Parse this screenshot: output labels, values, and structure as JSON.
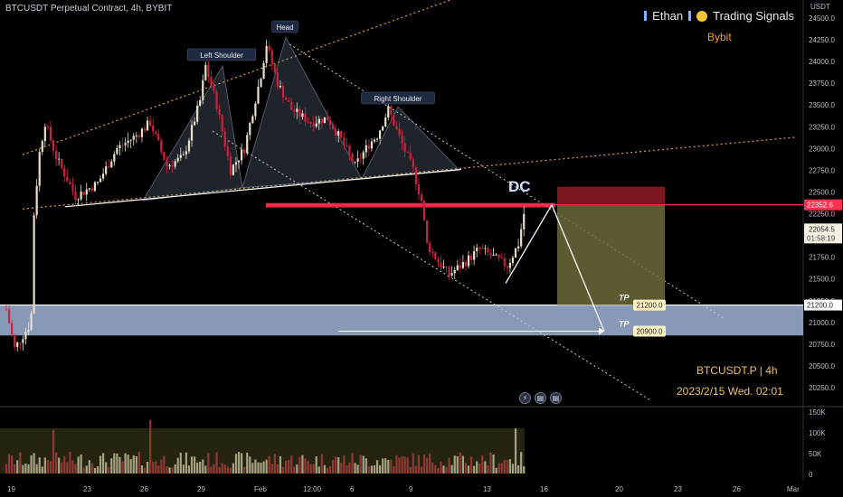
{
  "header": {
    "title": "BTCUSDT Perpetual Contract, 4h, BYBIT"
  },
  "branding": {
    "author": "Ethan",
    "signals": "Trading Signals",
    "exchange": "Bybit"
  },
  "footer": {
    "symbol": "BTCUSDT.P | 4h",
    "datetime": "2023/2/15 Wed. 02:01"
  },
  "axis": {
    "unit": "USDT"
  },
  "icons": [
    "lightning-icon",
    "us-flag-icon",
    "us-flag-icon"
  ],
  "colors": {
    "up": "#e8e0c8",
    "down": "#d02040",
    "tp_zone": "#9fb4d6",
    "stop_zone": "#8b1a22",
    "target_zone": "#6b6a3a",
    "resistance": "#ff3050",
    "channel": "#e0a040"
  },
  "chart_data": {
    "type": "candlestick",
    "title": "BTCUSDT Perpetual Contract, 4h, BYBIT",
    "ylim": [
      20000,
      24500
    ],
    "y_ticks": [
      20250,
      20500,
      20750,
      21000,
      21250,
      21500,
      21750,
      22000,
      22250,
      22500,
      22750,
      23000,
      23250,
      23500,
      23750,
      24000,
      24250,
      24500
    ],
    "y_tick_labels": [
      "20250.0",
      "20500.0",
      "20750.0",
      "21000.0",
      "21250.0",
      "21500.0",
      "21750.0",
      "22000.0",
      "22250.0",
      "22500.0",
      "22750.0",
      "23000.0",
      "23250.0",
      "23500.0",
      "23750.0",
      "24000.0",
      "24250.0",
      "24500.0"
    ],
    "x_labels": [
      "19",
      "23",
      "26",
      "29",
      "Feb",
      "12:00",
      "6",
      "9",
      "13",
      "16",
      "20",
      "23",
      "26",
      "Mar"
    ],
    "price_keypoints": [
      [
        0,
        21150
      ],
      [
        3,
        20700
      ],
      [
        8,
        20950
      ],
      [
        9,
        21100
      ],
      [
        10,
        22250
      ],
      [
        12,
        22950
      ],
      [
        14,
        23300
      ],
      [
        18,
        22900
      ],
      [
        25,
        22450
      ],
      [
        33,
        22600
      ],
      [
        40,
        23000
      ],
      [
        47,
        23150
      ],
      [
        52,
        23300
      ],
      [
        58,
        22800
      ],
      [
        64,
        22900
      ],
      [
        70,
        23550
      ],
      [
        72,
        23950
      ],
      [
        76,
        23500
      ],
      [
        81,
        22750
      ],
      [
        86,
        23000
      ],
      [
        92,
        23850
      ],
      [
        94,
        24200
      ],
      [
        98,
        23750
      ],
      [
        103,
        23450
      ],
      [
        110,
        23300
      ],
      [
        116,
        23350
      ],
      [
        121,
        23100
      ],
      [
        126,
        22800
      ],
      [
        131,
        23050
      ],
      [
        134,
        23150
      ],
      [
        138,
        23450
      ],
      [
        143,
        23050
      ],
      [
        147,
        22750
      ],
      [
        150,
        22400
      ],
      [
        152,
        21900
      ],
      [
        156,
        21700
      ],
      [
        160,
        21550
      ],
      [
        166,
        21700
      ],
      [
        171,
        21850
      ],
      [
        176,
        21750
      ],
      [
        181,
        21650
      ],
      [
        185,
        21900
      ],
      [
        187,
        22250
      ]
    ],
    "current_price": {
      "price": 22054.5,
      "label": "22054.5",
      "countdown": "01:58:19"
    },
    "levels": [
      {
        "name": "resistance",
        "price": 22352.6,
        "label": "22352.6"
      },
      {
        "name": "tp1",
        "price": 21200,
        "label": "21200.0"
      },
      {
        "name": "tp2",
        "price": 20900,
        "label": "20900.0"
      }
    ],
    "annotations": [
      "Left Shoulder",
      "Head",
      "Right Shoulder",
      "DC",
      "TP",
      "TP"
    ],
    "volume": {
      "ylim": [
        0,
        150000
      ],
      "ticks": [
        "150K",
        "100K",
        "50K",
        "0"
      ]
    }
  }
}
